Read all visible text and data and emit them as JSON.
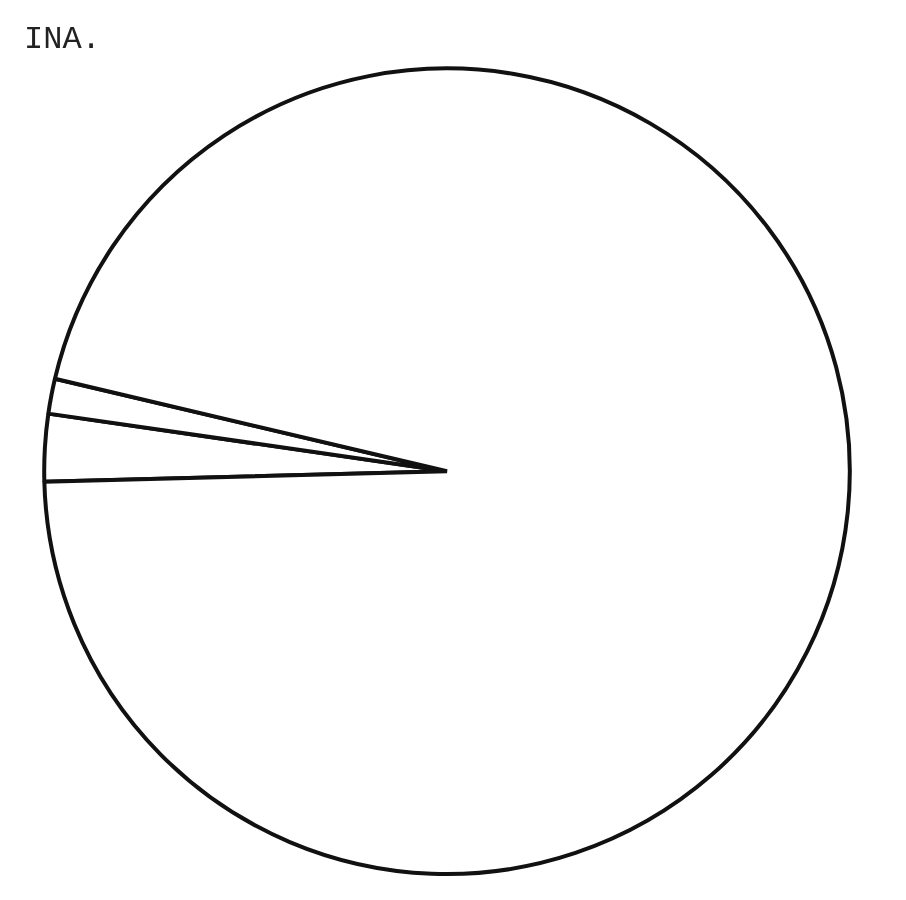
{
  "chart_data": {
    "type": "pie",
    "title": "INA.",
    "categories": [
      null,
      null,
      null
    ],
    "values": [
      2.7,
      1.4,
      95.9
    ],
    "colors": [
      "#ffffff",
      "#ffffff",
      "#ffffff"
    ]
  }
}
